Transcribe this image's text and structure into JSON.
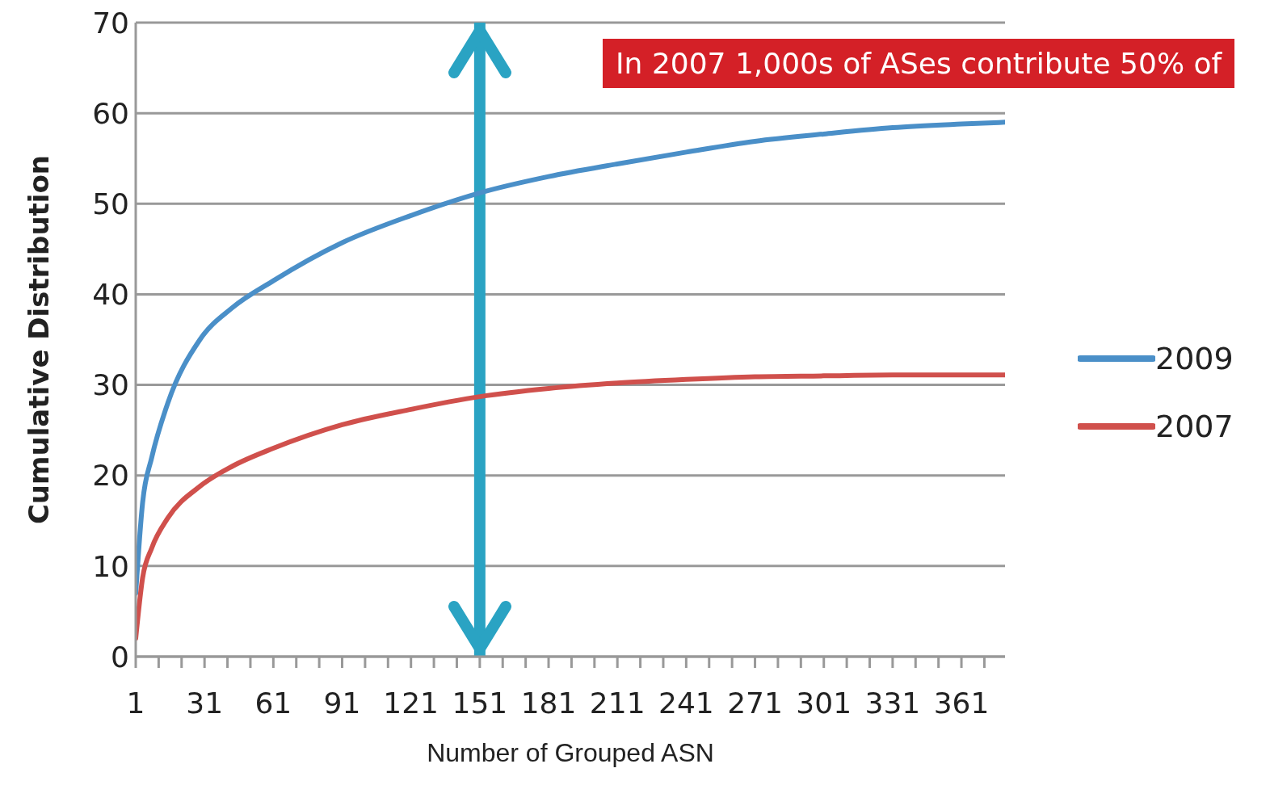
{
  "chart_data": {
    "type": "line",
    "xlabel": "Number of Grouped ASN",
    "ylabel": "Cumulative Distribution",
    "annotations": [
      "In 2007 1,000s of ASes contribute 50% of"
    ],
    "x": [
      1,
      4,
      8,
      15,
      29,
      43,
      61,
      91,
      121,
      151,
      181,
      211,
      241,
      271,
      301,
      331,
      361,
      380
    ],
    "series": [
      {
        "name": "2009",
        "color": "#4a8fc8",
        "values": [
          7,
          17,
          22,
          28,
          35,
          38.5,
          41.5,
          45.7,
          48.7,
          51.2,
          53,
          54.4,
          55.7,
          56.9,
          57.7,
          58.4,
          58.8,
          59
        ]
      },
      {
        "name": "2007",
        "color": "#d0504c",
        "values": [
          2,
          8.7,
          12,
          15.3,
          18.8,
          21,
          23,
          25.6,
          27.3,
          28.7,
          29.6,
          30.2,
          30.6,
          30.9,
          31,
          31.1,
          31.1,
          31.1
        ]
      }
    ],
    "xlim": [
      1,
      380
    ],
    "xticks": [
      1,
      {
        "value": 11,
        "label": null
      },
      {
        "value": 21,
        "label": null
      },
      31,
      {
        "value": 41,
        "label": null
      },
      {
        "value": 51,
        "label": null
      },
      61,
      {
        "value": 71,
        "label": null
      },
      {
        "value": 81,
        "label": null
      },
      91,
      {
        "value": 101,
        "label": null
      },
      {
        "value": 111,
        "label": null
      },
      121,
      {
        "value": 131,
        "label": null
      },
      {
        "value": 141,
        "label": null
      },
      151,
      {
        "value": 161,
        "label": null
      },
      {
        "value": 171,
        "label": null
      },
      181,
      {
        "value": 191,
        "label": null
      },
      {
        "value": 201,
        "label": null
      },
      211,
      {
        "value": 221,
        "label": null
      },
      {
        "value": 231,
        "label": null
      },
      241,
      {
        "value": 251,
        "label": null
      },
      {
        "value": 261,
        "label": null
      },
      271,
      {
        "value": 281,
        "label": null
      },
      {
        "value": 291,
        "label": null
      },
      301,
      {
        "value": 311,
        "label": null
      },
      {
        "value": 321,
        "label": null
      },
      331,
      {
        "value": 341,
        "label": null
      },
      {
        "value": 351,
        "label": null
      },
      361,
      {
        "value": 371,
        "label": null
      }
    ],
    "ylim": [
      0,
      70
    ],
    "yticks": [
      0,
      10,
      20,
      30,
      40,
      50,
      60,
      70
    ],
    "ref_lines": [
      {
        "axis": "x",
        "value": 151,
        "label": null,
        "color": "#2aa3c3"
      }
    ],
    "grid": "y",
    "legend": "right",
    "marker": "none",
    "line_style": "solid"
  }
}
